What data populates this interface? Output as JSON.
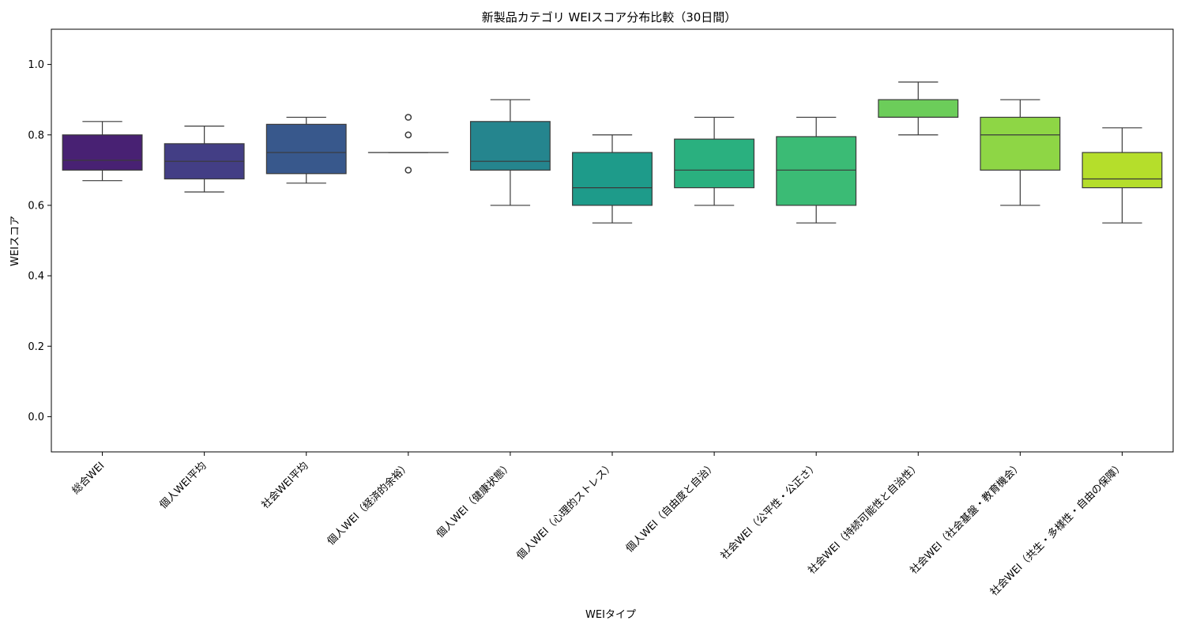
{
  "chart_data": {
    "type": "box",
    "title": "新製品カテゴリ WEIスコア分布比較（30日間）",
    "xlabel": "WEIタイプ",
    "ylabel": "WEIスコア",
    "ylim": [
      -0.1,
      1.1
    ],
    "yticks": [
      0.0,
      0.2,
      0.4,
      0.6,
      0.8,
      1.0
    ],
    "grid": false,
    "categories": [
      "総合WEI",
      "個人WEI平均",
      "社会WEI平均",
      "個人WEI（経済的余裕）",
      "個人WEI（健康状態）",
      "個人WEI（心理的ストレス）",
      "個人WEI（自由度と自治）",
      "社会WEI（公平性・公正さ）",
      "社会WEI（持続可能性と自治性）",
      "社会WEI（社会基盤・教育機会）",
      "社会WEI（共生・多様性・自由の保障）"
    ],
    "boxes": [
      {
        "whisker_low": 0.67,
        "q1": 0.7,
        "median": 0.728,
        "q3": 0.8,
        "whisker_high": 0.838,
        "outliers": [],
        "color": "#482173"
      },
      {
        "whisker_low": 0.638,
        "q1": 0.675,
        "median": 0.725,
        "q3": 0.775,
        "whisker_high": 0.825,
        "outliers": [],
        "color": "#433e85"
      },
      {
        "whisker_low": 0.663,
        "q1": 0.69,
        "median": 0.75,
        "q3": 0.83,
        "whisker_high": 0.85,
        "outliers": [],
        "color": "#38588c"
      },
      {
        "whisker_low": 0.75,
        "q1": 0.75,
        "median": 0.75,
        "q3": 0.75,
        "whisker_high": 0.75,
        "outliers": [
          0.85,
          0.8,
          0.7
        ],
        "color": "#2d708e"
      },
      {
        "whisker_low": 0.6,
        "q1": 0.7,
        "median": 0.725,
        "q3": 0.838,
        "whisker_high": 0.9,
        "outliers": [],
        "color": "#25858e"
      },
      {
        "whisker_low": 0.55,
        "q1": 0.6,
        "median": 0.65,
        "q3": 0.75,
        "whisker_high": 0.8,
        "outliers": [],
        "color": "#1e9b8a"
      },
      {
        "whisker_low": 0.6,
        "q1": 0.65,
        "median": 0.7,
        "q3": 0.788,
        "whisker_high": 0.85,
        "outliers": [],
        "color": "#2ab07f"
      },
      {
        "whisker_low": 0.55,
        "q1": 0.6,
        "median": 0.7,
        "q3": 0.795,
        "whisker_high": 0.85,
        "outliers": [],
        "color": "#3bbb75"
      },
      {
        "whisker_low": 0.8,
        "q1": 0.85,
        "median": 0.85,
        "q3": 0.9,
        "whisker_high": 0.95,
        "outliers": [],
        "color": "#6ccd5a"
      },
      {
        "whisker_low": 0.6,
        "q1": 0.7,
        "median": 0.8,
        "q3": 0.85,
        "whisker_high": 0.9,
        "outliers": [],
        "color": "#8ed645"
      },
      {
        "whisker_low": 0.55,
        "q1": 0.65,
        "median": 0.675,
        "q3": 0.75,
        "whisker_high": 0.82,
        "outliers": [],
        "color": "#b5de2b"
      }
    ]
  }
}
